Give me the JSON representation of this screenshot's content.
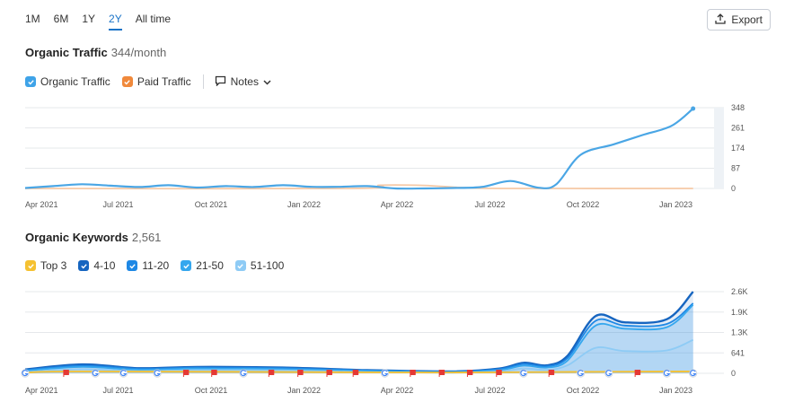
{
  "ranges": [
    "1M",
    "6M",
    "1Y",
    "2Y",
    "All time"
  ],
  "active_range": "2Y",
  "export_label": "Export",
  "traffic": {
    "title": "Organic Traffic",
    "value": "344/month",
    "legend": [
      {
        "label": "Organic Traffic",
        "color": "#3fa3e8"
      },
      {
        "label": "Paid Traffic",
        "color": "#f0893b"
      }
    ],
    "notes_label": "Notes"
  },
  "keywords": {
    "title": "Organic Keywords",
    "value": "2,561",
    "legend": [
      {
        "label": "Top 3",
        "color": "#f5c131"
      },
      {
        "label": "4-10",
        "color": "#1665c0"
      },
      {
        "label": "11-20",
        "color": "#1e88e5"
      },
      {
        "label": "21-50",
        "color": "#35a7ee"
      },
      {
        "label": "51-100",
        "color": "#8ecbf5"
      }
    ]
  },
  "colors": {
    "organic": "#4aa6e5",
    "paid": "#f6c9a6",
    "grid": "#e6e8eb"
  },
  "chart_data": [
    {
      "type": "line",
      "title": "Organic Traffic",
      "x_ticks": [
        "Apr 2021",
        "Jul 2021",
        "Oct 2021",
        "Jan 2022",
        "Apr 2022",
        "Jul 2022",
        "Oct 2022",
        "Jan 2023"
      ],
      "y_ticks": [
        "348",
        "261",
        "174",
        "87",
        "0"
      ],
      "ylim": [
        0,
        348
      ],
      "x_start": "2021-04-01",
      "x_end": "2023-04-15",
      "series": [
        {
          "name": "Organic Traffic",
          "points": [
            [
              "2021-04-01",
              2
            ],
            [
              "2021-05-01",
              10
            ],
            [
              "2021-06-01",
              18
            ],
            [
              "2021-07-01",
              12
            ],
            [
              "2021-08-01",
              6
            ],
            [
              "2021-09-01",
              14
            ],
            [
              "2021-10-01",
              4
            ],
            [
              "2021-11-01",
              10
            ],
            [
              "2021-12-01",
              6
            ],
            [
              "2022-01-01",
              14
            ],
            [
              "2022-02-01",
              7
            ],
            [
              "2022-03-01",
              7
            ],
            [
              "2022-04-01",
              10
            ],
            [
              "2022-05-01",
              0
            ],
            [
              "2022-06-01",
              0
            ],
            [
              "2022-07-01",
              2
            ],
            [
              "2022-08-01",
              6
            ],
            [
              "2022-09-01",
              32
            ],
            [
              "2022-10-01",
              3
            ],
            [
              "2022-10-20",
              18
            ],
            [
              "2022-11-15",
              145
            ],
            [
              "2022-12-20",
              190
            ],
            [
              "2023-01-20",
              230
            ],
            [
              "2023-02-20",
              270
            ],
            [
              "2023-03-15",
              344
            ]
          ]
        },
        {
          "name": "Paid Traffic",
          "points": [
            [
              "2021-04-01",
              0
            ],
            [
              "2022-03-15",
              0
            ],
            [
              "2022-04-15",
              14
            ],
            [
              "2022-06-01",
              13
            ],
            [
              "2022-07-15",
              3
            ],
            [
              "2022-09-01",
              0
            ],
            [
              "2023-03-15",
              0
            ]
          ]
        }
      ]
    },
    {
      "type": "area",
      "title": "Organic Keywords",
      "x_ticks": [
        "Apr 2021",
        "Jul 2021",
        "Oct 2021",
        "Jan 2022",
        "Apr 2022",
        "Jul 2022",
        "Oct 2022",
        "Jan 2023"
      ],
      "y_ticks": [
        "2.6K",
        "1.9K",
        "1.3K",
        "641",
        "0"
      ],
      "ylim": [
        0,
        2565
      ],
      "x_start": "2021-04-01",
      "x_end": "2023-04-15",
      "series": [
        {
          "name": "Top 3",
          "points": [
            [
              "2021-04-01",
              20
            ],
            [
              "2021-06-01",
              60
            ],
            [
              "2022-04-01",
              30
            ],
            [
              "2022-07-01",
              25
            ],
            [
              "2022-10-01",
              40
            ],
            [
              "2023-03-15",
              60
            ]
          ]
        },
        {
          "name": "4-10",
          "points": [
            [
              "2021-04-01",
              120
            ],
            [
              "2021-06-01",
              280
            ],
            [
              "2021-08-01",
              160
            ],
            [
              "2021-10-01",
              200
            ],
            [
              "2022-01-01",
              180
            ],
            [
              "2022-04-01",
              100
            ],
            [
              "2022-07-01",
              60
            ],
            [
              "2022-08-20",
              150
            ],
            [
              "2022-09-15",
              330
            ],
            [
              "2022-10-10",
              250
            ],
            [
              "2022-11-01",
              550
            ],
            [
              "2022-12-01",
              1800
            ],
            [
              "2023-01-01",
              1600
            ],
            [
              "2023-02-15",
              1700
            ],
            [
              "2023-03-15",
              2561
            ]
          ]
        },
        {
          "name": "11-20",
          "points": [
            [
              "2021-04-01",
              100
            ],
            [
              "2021-06-01",
              240
            ],
            [
              "2021-08-01",
              140
            ],
            [
              "2021-10-01",
              180
            ],
            [
              "2022-01-01",
              160
            ],
            [
              "2022-04-01",
              90
            ],
            [
              "2022-07-01",
              50
            ],
            [
              "2022-08-20",
              130
            ],
            [
              "2022-09-15",
              290
            ],
            [
              "2022-10-10",
              220
            ],
            [
              "2022-11-01",
              480
            ],
            [
              "2022-12-01",
              1650
            ],
            [
              "2023-01-01",
              1500
            ],
            [
              "2023-02-15",
              1550
            ],
            [
              "2023-03-15",
              2200
            ]
          ]
        },
        {
          "name": "21-50",
          "points": [
            [
              "2021-04-01",
              80
            ],
            [
              "2021-06-01",
              200
            ],
            [
              "2021-08-01",
              110
            ],
            [
              "2021-10-01",
              150
            ],
            [
              "2022-01-01",
              130
            ],
            [
              "2022-04-01",
              70
            ],
            [
              "2022-07-01",
              40
            ],
            [
              "2022-08-20",
              100
            ],
            [
              "2022-09-15",
              240
            ],
            [
              "2022-10-10",
              180
            ],
            [
              "2022-11-01",
              400
            ],
            [
              "2022-12-01",
              1500
            ],
            [
              "2023-01-01",
              1400
            ],
            [
              "2023-02-15",
              1450
            ],
            [
              "2023-03-15",
              2150
            ]
          ]
        },
        {
          "name": "51-100",
          "points": [
            [
              "2021-04-01",
              40
            ],
            [
              "2021-06-01",
              130
            ],
            [
              "2021-08-01",
              70
            ],
            [
              "2021-10-01",
              100
            ],
            [
              "2022-01-01",
              90
            ],
            [
              "2022-04-01",
              40
            ],
            [
              "2022-07-01",
              20
            ],
            [
              "2022-08-20",
              60
            ],
            [
              "2022-09-15",
              150
            ],
            [
              "2022-10-10",
              110
            ],
            [
              "2022-11-01",
              250
            ],
            [
              "2022-12-01",
              800
            ],
            [
              "2023-01-01",
              700
            ],
            [
              "2023-02-15",
              720
            ],
            [
              "2023-03-15",
              1050
            ]
          ]
        }
      ],
      "markers": [
        {
          "date": "2021-04-01",
          "kind": "google"
        },
        {
          "date": "2021-05-15",
          "kind": "flag"
        },
        {
          "date": "2021-06-15",
          "kind": "google"
        },
        {
          "date": "2021-07-15",
          "kind": "google"
        },
        {
          "date": "2021-08-20",
          "kind": "google"
        },
        {
          "date": "2021-09-20",
          "kind": "flag"
        },
        {
          "date": "2021-10-20",
          "kind": "flag"
        },
        {
          "date": "2021-11-20",
          "kind": "google"
        },
        {
          "date": "2021-12-20",
          "kind": "flag"
        },
        {
          "date": "2022-01-20",
          "kind": "flag"
        },
        {
          "date": "2022-02-20",
          "kind": "flag"
        },
        {
          "date": "2022-03-20",
          "kind": "flag"
        },
        {
          "date": "2022-04-20",
          "kind": "google"
        },
        {
          "date": "2022-05-20",
          "kind": "flag"
        },
        {
          "date": "2022-06-20",
          "kind": "flag"
        },
        {
          "date": "2022-07-20",
          "kind": "flag"
        },
        {
          "date": "2022-08-20",
          "kind": "flag"
        },
        {
          "date": "2022-09-15",
          "kind": "google"
        },
        {
          "date": "2022-10-15",
          "kind": "flag"
        },
        {
          "date": "2022-11-15",
          "kind": "google"
        },
        {
          "date": "2022-12-15",
          "kind": "google"
        },
        {
          "date": "2023-01-15",
          "kind": "flag"
        },
        {
          "date": "2023-02-15",
          "kind": "google"
        },
        {
          "date": "2023-03-15",
          "kind": "google"
        }
      ]
    }
  ]
}
